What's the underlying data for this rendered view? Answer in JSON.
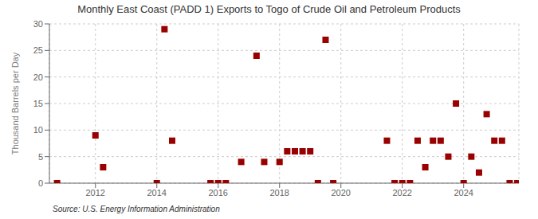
{
  "chart_data": {
    "type": "scatter",
    "title": "Monthly East Coast (PADD 1) Exports to Togo of Crude Oil and Petroleum Products",
    "ylabel": "Thousand Barrels per Day",
    "annotations": [
      "Source: U.S. Energy Information Administration"
    ],
    "x": [
      2010.75,
      2012.0,
      2012.25,
      2014.0,
      2014.25,
      2014.5,
      2015.75,
      2016.0,
      2016.25,
      2016.75,
      2017.25,
      2017.5,
      2018.0,
      2018.25,
      2018.5,
      2018.75,
      2019.0,
      2019.25,
      2019.5,
      2019.75,
      2021.5,
      2021.75,
      2022.0,
      2022.25,
      2022.5,
      2022.75,
      2023.0,
      2023.25,
      2023.5,
      2023.75,
      2024.0,
      2024.25,
      2024.5,
      2024.75,
      2025.0,
      2025.25,
      2025.5,
      2025.75
    ],
    "values": [
      0,
      9,
      3,
      0,
      29,
      8,
      0,
      0,
      0,
      4,
      24,
      4,
      4,
      6,
      6,
      6,
      6,
      0,
      27,
      0,
      8,
      0,
      0,
      0,
      8,
      3,
      8,
      8,
      5,
      15,
      0,
      5,
      2,
      13,
      8,
      8,
      0,
      0
    ],
    "color": "#990000",
    "marker": "square",
    "xlim": [
      2010.5,
      2025.8
    ],
    "xticks": [
      2012,
      2014,
      2016,
      2018,
      2020,
      2022,
      2024
    ],
    "ylim": [
      0,
      30
    ],
    "yticks": [
      0,
      5,
      10,
      15,
      20,
      25,
      30
    ],
    "grid": true
  }
}
